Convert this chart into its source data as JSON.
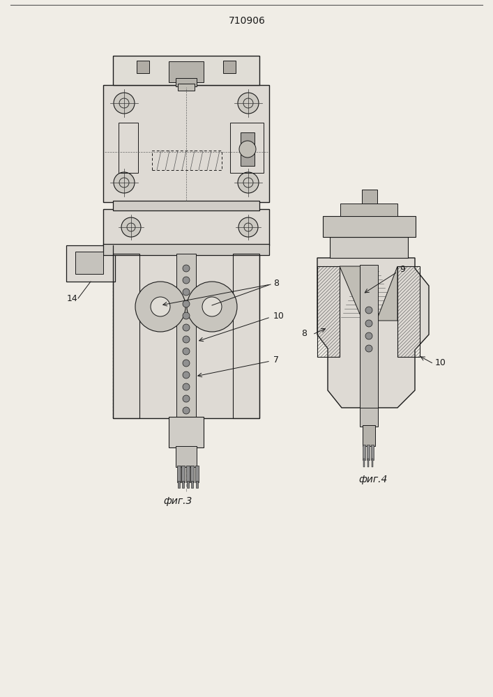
{
  "title": "710906",
  "fig3_label": "фиг.3",
  "fig4_label": "фиг.4",
  "background_color": "#f0ede6",
  "line_color": "#1a1a1a"
}
